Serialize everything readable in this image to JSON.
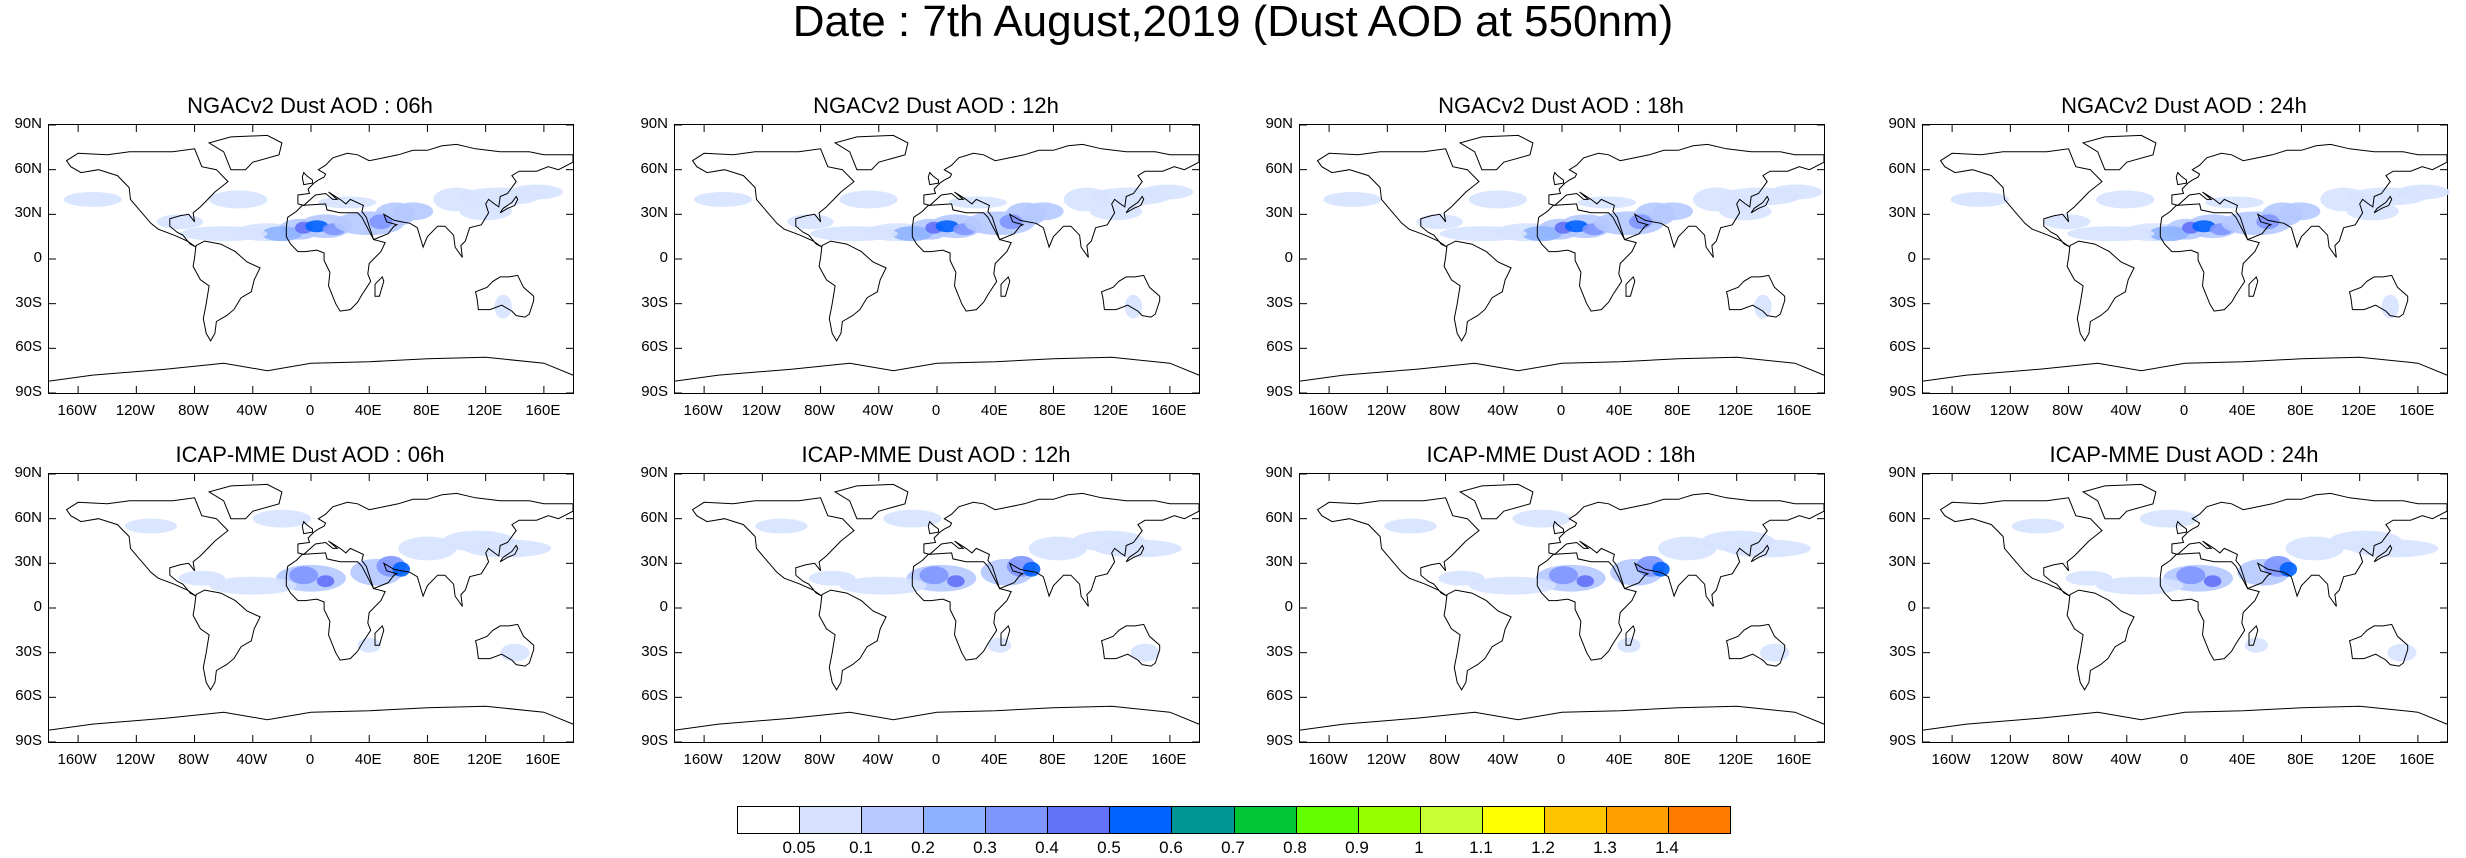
{
  "main_title": "Date : 7th August,2019 (Dust AOD at 550nm)",
  "panels": [
    {
      "title": "NGACv2 Dust AOD : 06h",
      "model": "NGACv2",
      "hour": "06h"
    },
    {
      "title": "NGACv2 Dust AOD : 12h",
      "model": "NGACv2",
      "hour": "12h"
    },
    {
      "title": "NGACv2 Dust AOD : 18h",
      "model": "NGACv2",
      "hour": "18h"
    },
    {
      "title": "NGACv2 Dust AOD : 24h",
      "model": "NGACv2",
      "hour": "24h"
    },
    {
      "title": "ICAP-MME Dust AOD : 06h",
      "model": "ICAP-MME",
      "hour": "06h"
    },
    {
      "title": "ICAP-MME Dust AOD : 12h",
      "model": "ICAP-MME",
      "hour": "12h"
    },
    {
      "title": "ICAP-MME Dust AOD : 18h",
      "model": "ICAP-MME",
      "hour": "18h"
    },
    {
      "title": "ICAP-MME Dust AOD : 24h",
      "model": "ICAP-MME",
      "hour": "24h"
    }
  ],
  "axes": {
    "lat_ticks": [
      "90N",
      "60N",
      "30N",
      "0",
      "30S",
      "60S",
      "90S"
    ],
    "lon_ticks": [
      "160W",
      "120W",
      "80W",
      "40W",
      "0",
      "40E",
      "80E",
      "120E",
      "160E"
    ],
    "lon_values": [
      -160,
      -120,
      -80,
      -40,
      0,
      40,
      80,
      120,
      160
    ],
    "lat_values": [
      90,
      60,
      30,
      0,
      -30,
      -60,
      -90
    ]
  },
  "colorbar": {
    "labels": [
      "0.05",
      "0.1",
      "0.2",
      "0.3",
      "0.4",
      "0.5",
      "0.6",
      "0.7",
      "0.8",
      "0.9",
      "1",
      "1.1",
      "1.2",
      "1.3",
      "1.4"
    ],
    "colors": [
      "#ffffff",
      "#d6e2ff",
      "#b5c9ff",
      "#8eb2ff",
      "#7f96ff",
      "#6370f8",
      "#0062ff",
      "#009696",
      "#00c633",
      "#63ff00",
      "#96ff00",
      "#c6ff33",
      "#ffff00",
      "#ffc400",
      "#ffa000",
      "#ff7c00",
      "#ff1900"
    ]
  }
}
